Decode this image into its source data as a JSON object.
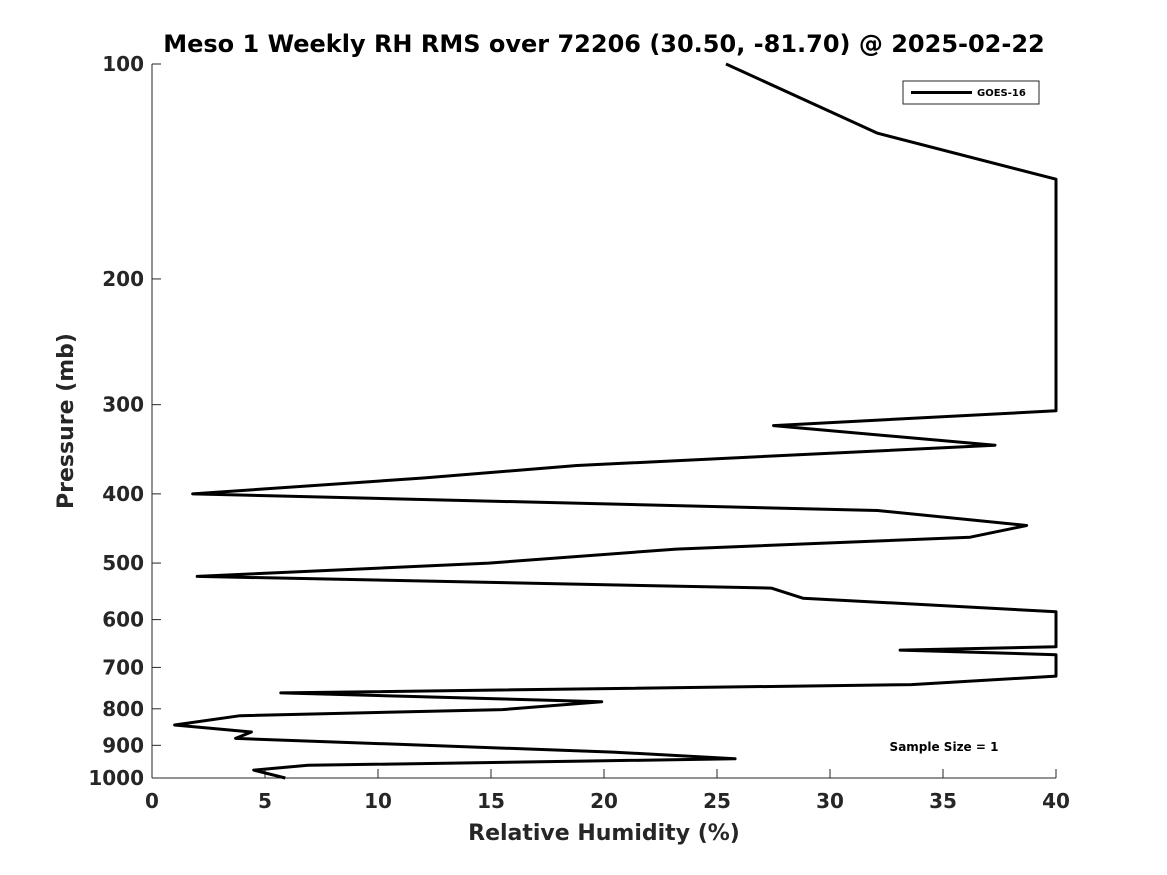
{
  "chart_data": {
    "type": "line",
    "title": "Meso 1 Weekly RH RMS over 72206 (30.50, -81.70) @ 2025-02-22",
    "xlabel": "Relative Humidity (%)",
    "ylabel": "Pressure (mb)",
    "xlim": [
      0,
      40
    ],
    "ylim": [
      100,
      1000
    ],
    "y_scale": "log",
    "y_reversed": true,
    "grid": false,
    "legend_position": "top-right",
    "x_ticks": [
      0,
      5,
      10,
      15,
      20,
      25,
      30,
      35,
      40
    ],
    "y_ticks": [
      100,
      200,
      300,
      400,
      500,
      600,
      700,
      800,
      900,
      1000
    ],
    "annotation": "Sample Size = 1",
    "series": [
      {
        "name": "GOES-16",
        "color": "#000000",
        "points": [
          [
            25.4,
            100
          ],
          [
            32.1,
            125
          ],
          [
            40,
            145
          ],
          [
            40,
            306
          ],
          [
            27.5,
            321
          ],
          [
            37.3,
            342
          ],
          [
            18.8,
            365
          ],
          [
            12,
            380
          ],
          [
            1.8,
            400
          ],
          [
            32.1,
            422
          ],
          [
            38.7,
            443
          ],
          [
            36.2,
            460
          ],
          [
            23.2,
            478
          ],
          [
            14.9,
            500
          ],
          [
            2,
            522
          ],
          [
            27.4,
            542
          ],
          [
            28.8,
            560
          ],
          [
            40,
            585
          ],
          [
            40,
            655
          ],
          [
            33.1,
            662
          ],
          [
            40,
            672
          ],
          [
            40,
            720
          ],
          [
            33.6,
            740
          ],
          [
            5.7,
            760
          ],
          [
            19.9,
            782
          ],
          [
            15.5,
            802
          ],
          [
            3.9,
            818
          ],
          [
            1,
            843
          ],
          [
            4.4,
            862
          ],
          [
            3.7,
            880
          ],
          [
            20.4,
            920
          ],
          [
            25.8,
            940
          ],
          [
            6.9,
            960
          ],
          [
            4.5,
            975
          ],
          [
            5.9,
            1000
          ]
        ]
      }
    ]
  }
}
